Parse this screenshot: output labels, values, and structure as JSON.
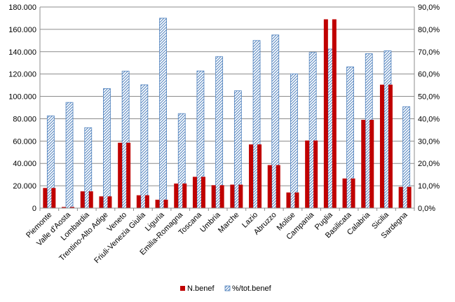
{
  "chart_data": {
    "type": "bar",
    "categories": [
      "Piemonte",
      "Valle d'Aosta",
      "Lombardia",
      "Trentino-Alto Adige",
      "Veneto",
      "Friuli-Venezia Giulia",
      "Liguria",
      "Emilia-Romagna",
      "Toscana",
      "Umbria",
      "Marche",
      "Lazio",
      "Abruzzo",
      "Molise",
      "Campania",
      "Puglia",
      "Basilicata",
      "Calabria",
      "Sicilia",
      "Sardegna"
    ],
    "series": [
      {
        "name": "N.benef",
        "axis": "left",
        "color": "#c00000",
        "values": [
          18000,
          1000,
          15000,
          10500,
          58500,
          11500,
          7500,
          22000,
          28000,
          20500,
          21000,
          57000,
          38500,
          14000,
          60500,
          169000,
          26500,
          79000,
          110500,
          19000
        ]
      },
      {
        "name": "%/tot.benef",
        "axis": "right",
        "color": "#4f81bd",
        "values": [
          41.3,
          47.3,
          36.0,
          53.5,
          61.3,
          55.2,
          85.0,
          42.3,
          61.4,
          67.8,
          52.5,
          75.0,
          77.5,
          60.1,
          69.7,
          71.2,
          63.2,
          69.1,
          70.4,
          45.4
        ]
      }
    ],
    "y_left": {
      "ylim": [
        0,
        180000
      ],
      "ticks": [
        0,
        20000,
        40000,
        60000,
        80000,
        100000,
        120000,
        140000,
        160000,
        180000
      ],
      "tick_labels": [
        "0",
        "20.000",
        "40.000",
        "60.000",
        "80.000",
        "100.000",
        "120.000",
        "140.000",
        "160.000",
        "180.000"
      ]
    },
    "y_right": {
      "ylim": [
        0,
        90
      ],
      "ticks": [
        0,
        10,
        20,
        30,
        40,
        50,
        60,
        70,
        80,
        90
      ],
      "tick_labels": [
        "0,0%",
        "10,0%",
        "20,0%",
        "30,0%",
        "40,0%",
        "50,0%",
        "60,0%",
        "70,0%",
        "80,0%",
        "90,0%"
      ]
    },
    "grid": true,
    "legend": "bottom",
    "title": "",
    "xlabel": "",
    "ylabel": ""
  }
}
